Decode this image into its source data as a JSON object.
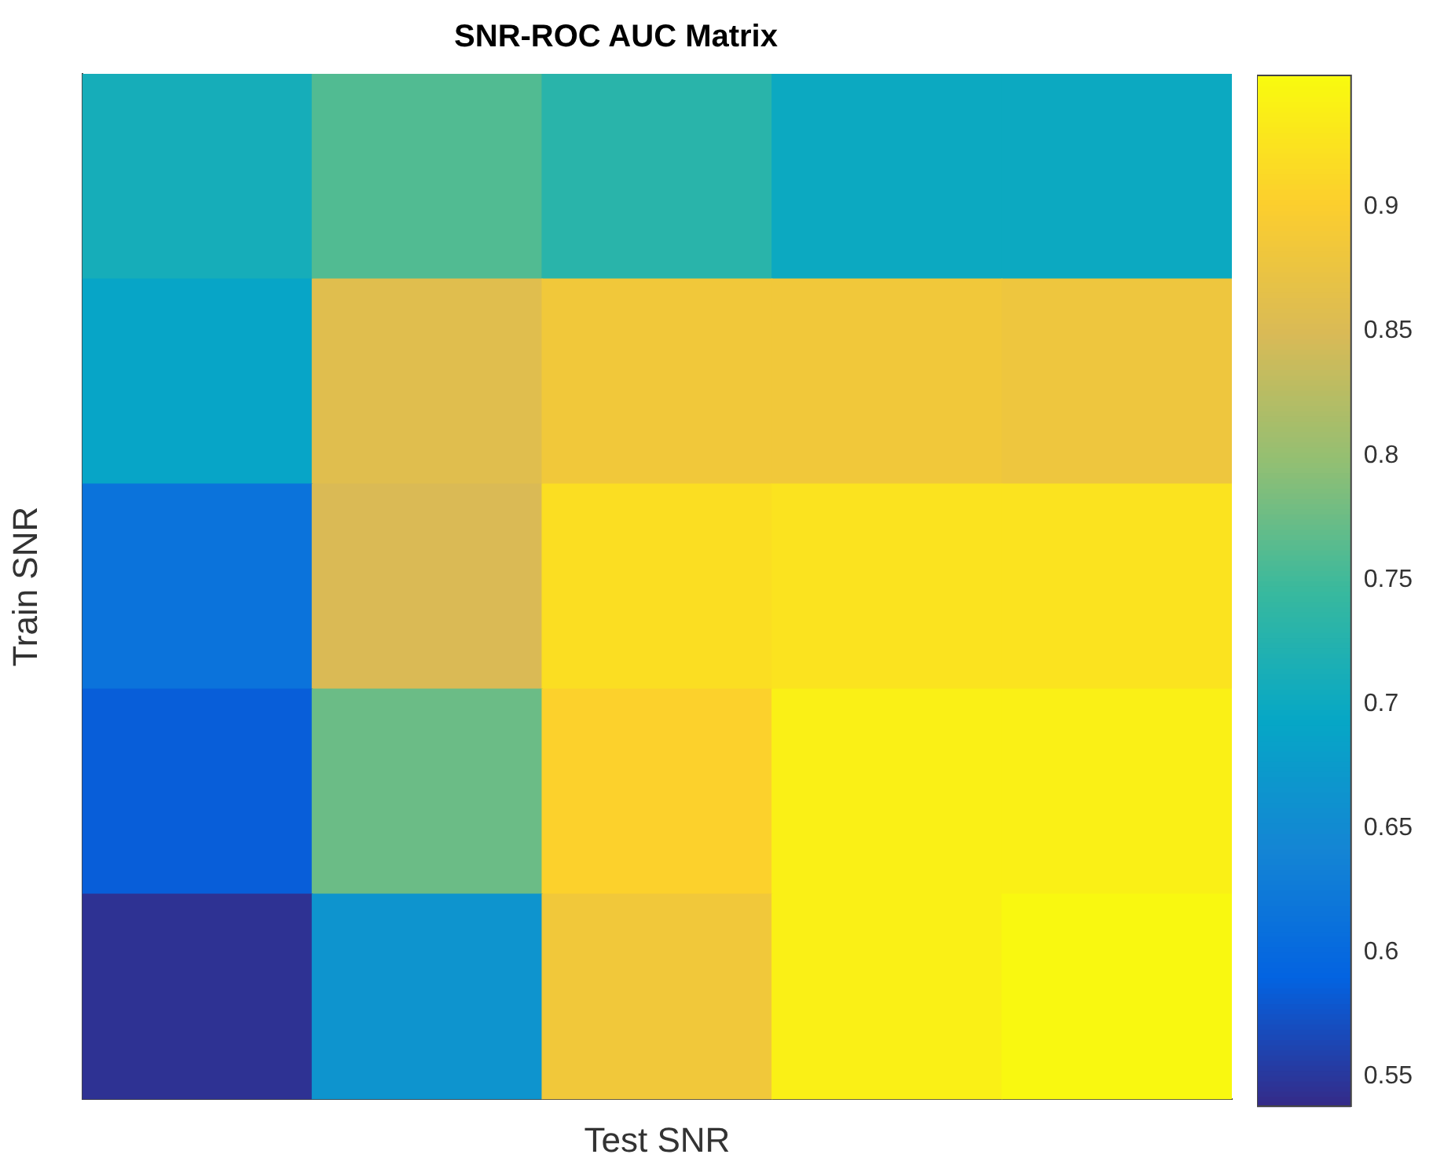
{
  "chart_data": {
    "type": "heatmap",
    "title": "SNR-ROC AUC Matrix",
    "xlabel": "Test SNR",
    "ylabel": "Train SNR",
    "categories": [
      null,
      null,
      null,
      null,
      null
    ],
    "y_categories": [
      null,
      null,
      null,
      null,
      null
    ],
    "cells": [
      [
        0.71,
        0.76,
        0.73,
        0.7,
        0.7
      ],
      [
        0.69,
        0.86,
        0.885,
        0.885,
        0.88
      ],
      [
        0.615,
        0.85,
        0.92,
        0.925,
        0.925
      ],
      [
        0.585,
        0.775,
        0.905,
        0.94,
        0.94
      ],
      [
        0.545,
        0.665,
        0.885,
        0.94,
        0.95
      ]
    ],
    "clim": [
      0.538,
      0.953
    ],
    "cticks": [
      0.55,
      0.6,
      0.65,
      0.7,
      0.75,
      0.8,
      0.85,
      0.9
    ],
    "tick_labels": false
  }
}
